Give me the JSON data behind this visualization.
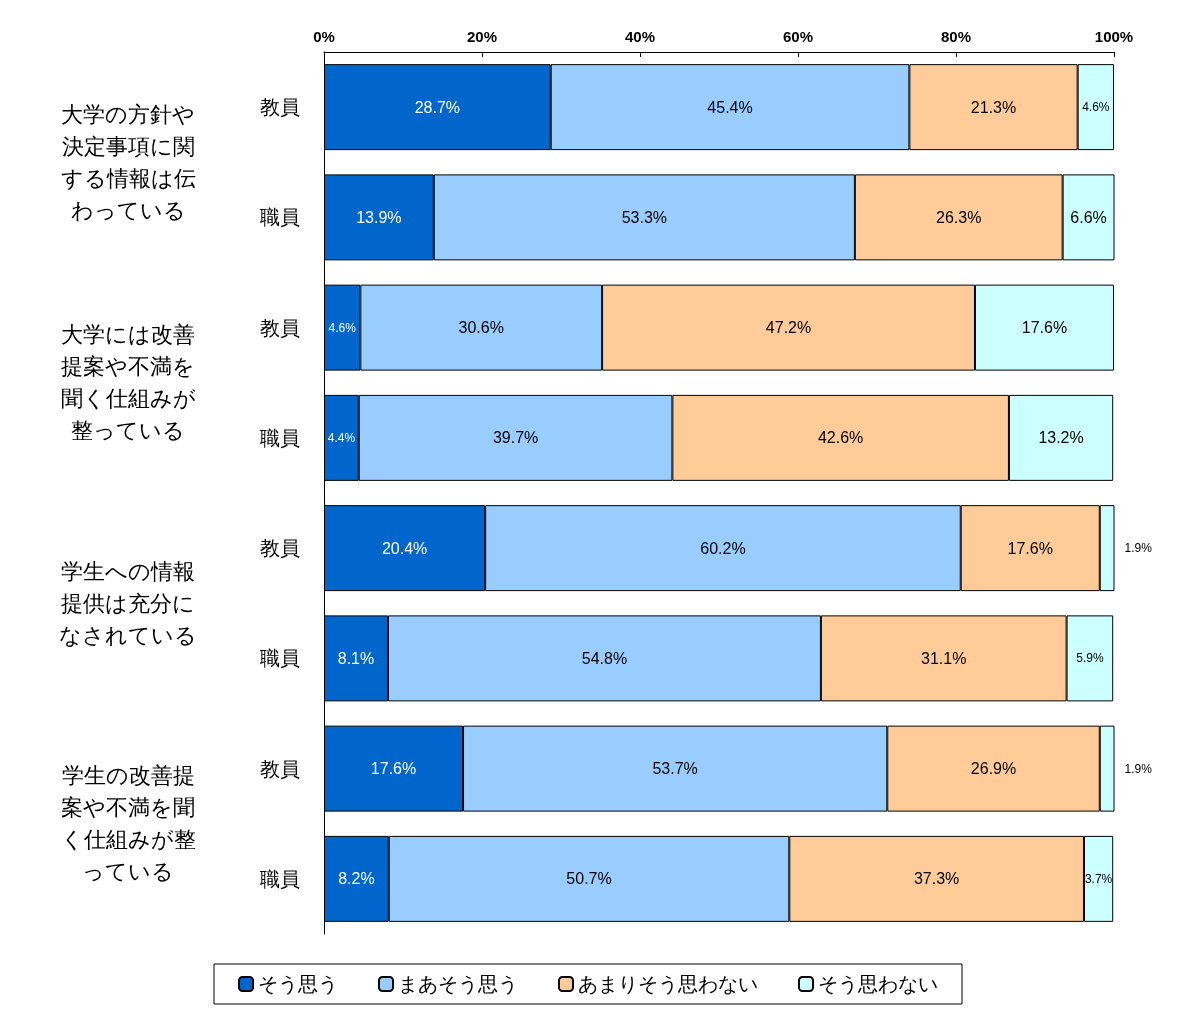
{
  "chart_data": {
    "type": "bar",
    "orientation": "horizontal",
    "stacked": true,
    "categories": [
      "教員",
      "職員",
      "教員",
      "職員",
      "教員",
      "職員",
      "教員",
      "職員"
    ],
    "series": [
      {
        "name": "そう思う",
        "color": "#0066cc",
        "values": [
          28.7,
          13.9,
          4.6,
          4.4,
          20.4,
          8.1,
          17.6,
          8.2
        ],
        "value_labels": [
          "28.7%",
          "13.9%",
          "4.6%",
          "4.4%",
          "20.4%",
          "8.1%",
          "17.6%",
          "8.2%"
        ]
      },
      {
        "name": "まあそう思う",
        "color": "#99ccff",
        "values": [
          45.4,
          53.3,
          30.6,
          39.7,
          60.2,
          54.8,
          53.7,
          50.7
        ],
        "value_labels": [
          "45.4%",
          "53.3%",
          "30.6%",
          "39.7%",
          "60.2%",
          "54.8%",
          "53.7%",
          "50.7%"
        ]
      },
      {
        "name": "あまりそう思わない",
        "color": "#ffcc99",
        "values": [
          21.3,
          26.3,
          47.2,
          42.6,
          17.6,
          31.1,
          26.9,
          37.3
        ],
        "value_labels": [
          "21.3%",
          "26.3%",
          "47.2%",
          "42.6%",
          "17.6%",
          "31.1%",
          "26.9%",
          "37.3%"
        ]
      },
      {
        "name": "そう思わない",
        "color": "#ccffff",
        "values": [
          4.6,
          6.6,
          17.6,
          13.2,
          1.9,
          5.9,
          1.9,
          3.7
        ],
        "value_labels": [
          "4.6%",
          "6.6%",
          "17.6%",
          "13.2%",
          "1.9%",
          "5.9%",
          "1.9%",
          "3.7%"
        ]
      }
    ],
    "xlim": [
      0,
      100
    ],
    "xticks": [
      {
        "value": 0,
        "label": "0%"
      },
      {
        "value": 20,
        "label": "20%"
      },
      {
        "value": 40,
        "label": "40%"
      },
      {
        "value": 60,
        "label": "60%"
      },
      {
        "value": 80,
        "label": "80%"
      },
      {
        "value": 100,
        "label": "100%"
      }
    ],
    "annotations": [
      "大学の方針や決定事項に関する情報は伝わっている",
      "大学には改善提案や不満を聞く仕組みが整っている",
      "学生への情報提供は充分になされている",
      "学生の改善提案や不満を聞く仕組みが整っている"
    ],
    "grid": false,
    "legend": "bottom"
  }
}
